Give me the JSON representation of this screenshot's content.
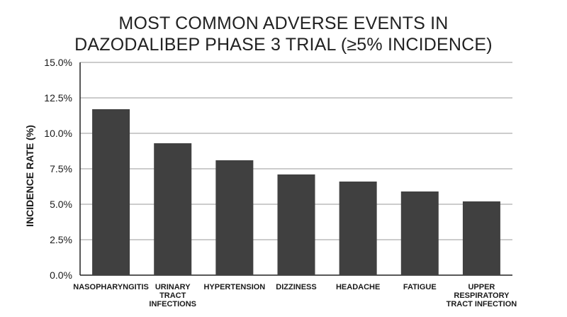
{
  "chart_data": {
    "type": "bar",
    "title_lines": [
      "MOST COMMON ADVERSE EVENTS IN",
      "DAZODALIBEP PHASE 3 TRIAL (≥5% INCIDENCE)"
    ],
    "xlabel": "",
    "ylabel": "INCIDENCE RATE (%)",
    "ylim": [
      0,
      15
    ],
    "yticks": [
      0,
      2.5,
      5,
      7.5,
      10,
      12.5,
      15
    ],
    "ytick_labels": [
      "0.0%",
      "2.5%",
      "5.0%",
      "7.5%",
      "10.0%",
      "12.5%",
      "15.0%"
    ],
    "categories": [
      [
        "NASOPHARYNGITIS"
      ],
      [
        "URINARY",
        "TRACT",
        "INFECTIONS"
      ],
      [
        "HYPERTENSION"
      ],
      [
        "DIZZINESS"
      ],
      [
        "HEADACHE"
      ],
      [
        "FATIGUE"
      ],
      [
        "UPPER",
        "RESPIRATORY",
        "TRACT INFECTION"
      ]
    ],
    "values": [
      11.7,
      9.3,
      8.1,
      7.1,
      6.6,
      5.9,
      5.2
    ],
    "bar_color": "#404040",
    "grid": true,
    "legend": "none"
  }
}
